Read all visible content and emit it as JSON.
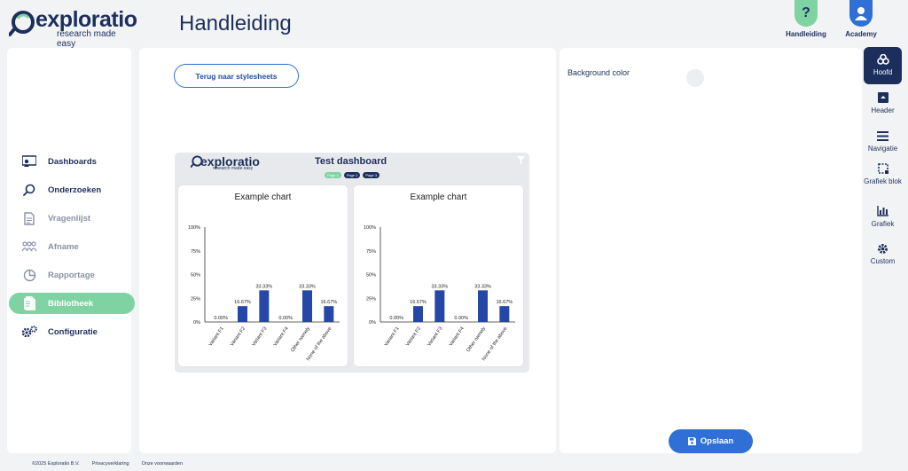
{
  "brand": {
    "name": "exploratio",
    "tagline": "research made easy"
  },
  "page_title": "Handleiding",
  "top_links": [
    {
      "label": "Handleiding",
      "color": "#7fd3a3"
    },
    {
      "label": "Academy",
      "color": "#2f6fd6"
    }
  ],
  "sidebar": {
    "items": [
      {
        "label": "Dashboards",
        "icon": "dashboard-icon",
        "state": "dark"
      },
      {
        "label": "Onderzoeken",
        "icon": "search-icon",
        "state": "dark"
      },
      {
        "label": "Vragenlijst",
        "icon": "document-icon",
        "state": "muted"
      },
      {
        "label": "Afname",
        "icon": "people-icon",
        "state": "muted"
      },
      {
        "label": "Rapportage",
        "icon": "pie-chart-icon",
        "state": "muted"
      },
      {
        "label": "Bibliotheek",
        "icon": "library-icon",
        "state": "active"
      },
      {
        "label": "Configuratie",
        "icon": "gears-icon",
        "state": "dark"
      }
    ]
  },
  "main": {
    "back_button": "Terug naar stylesheets",
    "preview": {
      "title": "Test dashboard",
      "pages": [
        {
          "label": "Page 1",
          "color": "#7fd3a3"
        },
        {
          "label": "Page 2",
          "color": "#1c2f5c"
        },
        {
          "label": "Page 3",
          "color": "#1c2f5c"
        }
      ]
    }
  },
  "chart_data": [
    {
      "type": "bar",
      "title": "Example chart",
      "categories": [
        "Variant F1",
        "Variant F2",
        "Variant F3",
        "Variant F4",
        "Other namely",
        "None of the above"
      ],
      "values": [
        0,
        16.67,
        33.33,
        0,
        33.33,
        16.67
      ],
      "value_labels": [
        "0.00%",
        "16.67%",
        "33.33%",
        "0.00%",
        "33.33%",
        "16.67%"
      ],
      "yticks": [
        "0%",
        "25%",
        "50%",
        "75%",
        "100%"
      ],
      "ylim": [
        0,
        100
      ],
      "color": "#2547a8"
    },
    {
      "type": "bar",
      "title": "Example chart",
      "categories": [
        "Variant F1",
        "Variant F2",
        "Variant F3",
        "Variant F4",
        "Other namely",
        "None of the above"
      ],
      "values": [
        0,
        16.67,
        33.33,
        0,
        33.33,
        16.67
      ],
      "value_labels": [
        "0.00%",
        "16.67%",
        "33.33%",
        "0.00%",
        "33.33%",
        "16.67%"
      ],
      "yticks": [
        "0%",
        "25%",
        "50%",
        "75%",
        "100%"
      ],
      "ylim": [
        0,
        100
      ],
      "color": "#2547a8"
    }
  ],
  "right_panel": {
    "background_label": "Background color",
    "save_button": "Opslaan"
  },
  "toolbar": [
    {
      "label": "Hoofd",
      "icon": "layers-icon",
      "active": true
    },
    {
      "label": "Header",
      "icon": "header-icon",
      "active": false
    },
    {
      "label": "Navigatie",
      "icon": "menu-icon",
      "active": false
    },
    {
      "label": "Grafiek blok",
      "icon": "block-icon",
      "active": false
    },
    {
      "label": "Grafiek",
      "icon": "bar-chart-icon",
      "active": false
    },
    {
      "label": "Custom",
      "icon": "gear-icon",
      "active": false
    }
  ],
  "footer": {
    "copyright": "©2025 Exploratio B.V.",
    "privacy": "Privacyverklaring",
    "terms": "Onze voorwaarden"
  }
}
